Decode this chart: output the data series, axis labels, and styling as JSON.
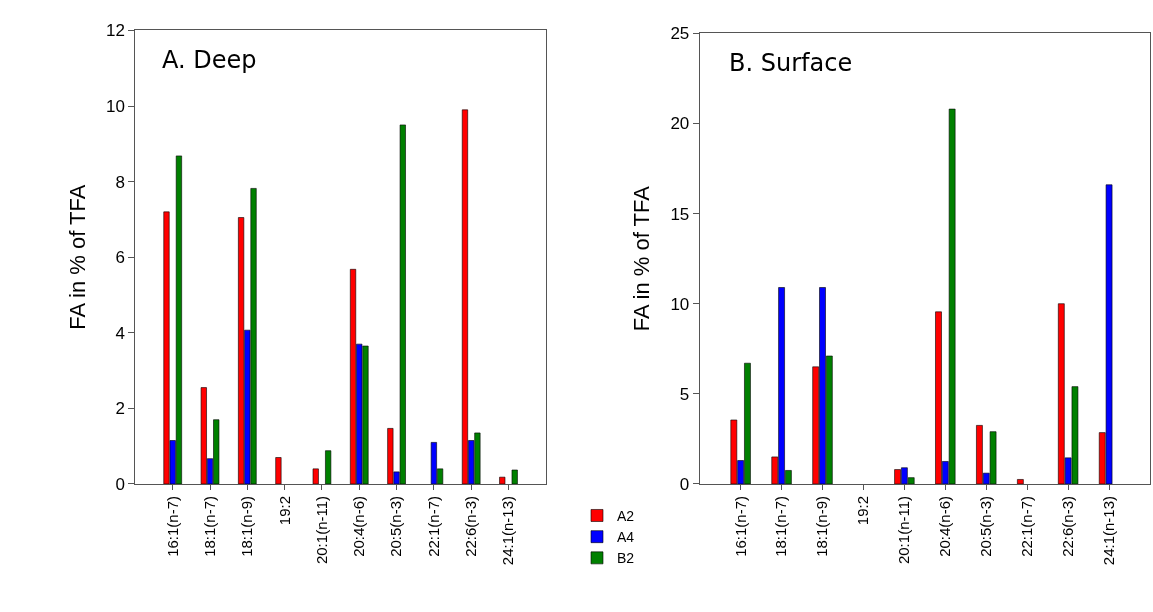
{
  "chart_data": [
    {
      "type": "bar",
      "title": "A. Deep",
      "ylabel": "FA in % of TFA",
      "categories": [
        "16:1(n-7)",
        "18:1(n-7)",
        "18:1(n-9)",
        "19:2",
        "20:1(n-11)",
        "20:4(n-6)",
        "20:5(n-3)",
        "22:1(n-7)",
        "22:6(n-3)",
        "24:1(n-13)"
      ],
      "ylim": [
        0,
        12
      ],
      "yticks": [
        0,
        2,
        4,
        6,
        8,
        10,
        12
      ],
      "legend": "bottom right",
      "series": [
        {
          "name": "A2",
          "color": "#ff0000",
          "values": [
            7.2,
            2.55,
            7.05,
            0.7,
            0.4,
            5.68,
            1.47,
            null,
            9.9,
            0.18
          ]
        },
        {
          "name": "A4",
          "color": "#0000ff",
          "values": [
            1.15,
            0.67,
            4.07,
            null,
            null,
            3.7,
            0.32,
            1.1,
            1.15,
            null
          ]
        },
        {
          "name": "B2",
          "color": "#008000",
          "values": [
            8.68,
            1.7,
            7.82,
            null,
            0.88,
            3.65,
            9.5,
            0.4,
            1.35,
            0.37
          ]
        }
      ]
    },
    {
      "type": "bar",
      "title": "B. Surface",
      "ylabel": "FA in % of TFA",
      "categories": [
        "16:1(n-7)",
        "18:1(n-7)",
        "18:1(n-9)",
        "19:2",
        "20:1(n-11)",
        "20:4(n-6)",
        "20:5(n-3)",
        "22:1(n-7)",
        "22:6(n-3)",
        "24:1(n-13)"
      ],
      "ylim": [
        0,
        25
      ],
      "yticks": [
        0,
        5,
        10,
        15,
        20,
        25
      ],
      "series": [
        {
          "color": "#ff0000",
          "values": [
            3.55,
            1.5,
            6.5,
            null,
            0.8,
            9.55,
            3.25,
            0.25,
            10.0,
            2.85
          ]
        },
        {
          "color": "#0000ff",
          "values": [
            1.3,
            10.9,
            10.9,
            null,
            0.9,
            1.25,
            0.6,
            null,
            1.45,
            16.6
          ]
        },
        {
          "color": "#008000",
          "values": [
            6.7,
            0.75,
            7.1,
            null,
            0.35,
            20.8,
            2.9,
            null,
            5.4,
            null
          ]
        }
      ]
    }
  ]
}
